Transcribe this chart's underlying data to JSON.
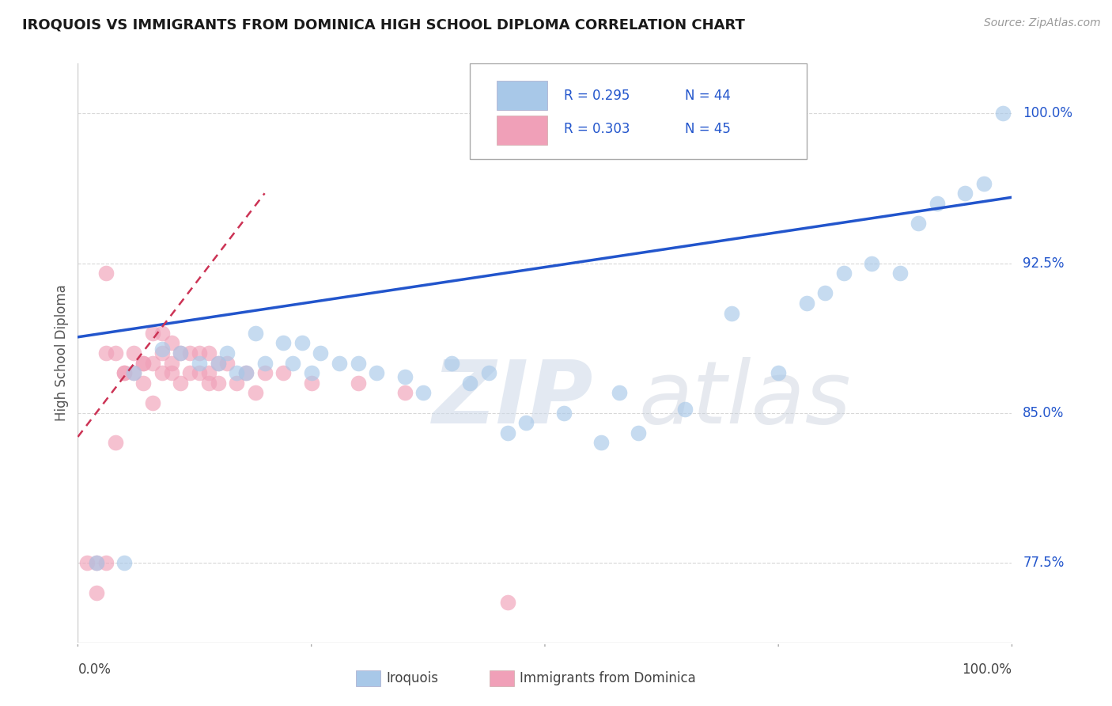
{
  "title": "IROQUOIS VS IMMIGRANTS FROM DOMINICA HIGH SCHOOL DIPLOMA CORRELATION CHART",
  "source": "Source: ZipAtlas.com",
  "ylabel": "High School Diploma",
  "xlim": [
    0,
    1.0
  ],
  "ylim": [
    0.735,
    1.025
  ],
  "ytick_positions": [
    0.775,
    0.85,
    0.925,
    1.0
  ],
  "ytick_labels": [
    "77.5%",
    "85.0%",
    "92.5%",
    "100.0%"
  ],
  "background_color": "#ffffff",
  "grid_color": "#c8c8c8",
  "blue_color": "#a8c8e8",
  "pink_color": "#f0a0b8",
  "blue_line_color": "#2255cc",
  "pink_line_color": "#cc3355",
  "legend_r_blue": "R = 0.295",
  "legend_n_blue": "N = 44",
  "legend_r_pink": "R = 0.303",
  "legend_n_pink": "N = 45",
  "legend_label_blue": "Iroquois",
  "legend_label_pink": "Immigrants from Dominica",
  "blue_scatter_x": [
    0.02,
    0.05,
    0.06,
    0.09,
    0.11,
    0.13,
    0.15,
    0.16,
    0.17,
    0.18,
    0.19,
    0.2,
    0.22,
    0.23,
    0.24,
    0.25,
    0.26,
    0.28,
    0.3,
    0.32,
    0.35,
    0.37,
    0.4,
    0.42,
    0.44,
    0.46,
    0.48,
    0.52,
    0.56,
    0.58,
    0.6,
    0.65,
    0.7,
    0.75,
    0.78,
    0.8,
    0.82,
    0.85,
    0.88,
    0.9,
    0.92,
    0.95,
    0.97,
    0.99
  ],
  "blue_scatter_y": [
    0.775,
    0.775,
    0.87,
    0.882,
    0.88,
    0.875,
    0.875,
    0.88,
    0.87,
    0.87,
    0.89,
    0.875,
    0.885,
    0.875,
    0.885,
    0.87,
    0.88,
    0.875,
    0.875,
    0.87,
    0.868,
    0.86,
    0.875,
    0.865,
    0.87,
    0.84,
    0.845,
    0.85,
    0.835,
    0.86,
    0.84,
    0.852,
    0.9,
    0.87,
    0.905,
    0.91,
    0.92,
    0.925,
    0.92,
    0.945,
    0.955,
    0.96,
    0.965,
    1.0
  ],
  "pink_scatter_x": [
    0.01,
    0.02,
    0.02,
    0.03,
    0.03,
    0.04,
    0.04,
    0.05,
    0.05,
    0.06,
    0.06,
    0.07,
    0.07,
    0.07,
    0.08,
    0.08,
    0.08,
    0.09,
    0.09,
    0.09,
    0.1,
    0.1,
    0.1,
    0.11,
    0.11,
    0.12,
    0.12,
    0.13,
    0.13,
    0.14,
    0.14,
    0.14,
    0.15,
    0.15,
    0.16,
    0.17,
    0.18,
    0.19,
    0.2,
    0.22,
    0.25,
    0.3,
    0.35,
    0.46,
    0.03
  ],
  "pink_scatter_y": [
    0.775,
    0.76,
    0.775,
    0.88,
    0.775,
    0.88,
    0.835,
    0.87,
    0.87,
    0.88,
    0.87,
    0.875,
    0.875,
    0.865,
    0.89,
    0.875,
    0.855,
    0.89,
    0.88,
    0.87,
    0.885,
    0.875,
    0.87,
    0.88,
    0.865,
    0.88,
    0.87,
    0.88,
    0.87,
    0.88,
    0.87,
    0.865,
    0.875,
    0.865,
    0.875,
    0.865,
    0.87,
    0.86,
    0.87,
    0.87,
    0.865,
    0.865,
    0.86,
    0.755,
    0.92
  ],
  "blue_line_x0": 0.0,
  "blue_line_y0": 0.888,
  "blue_line_x1": 1.0,
  "blue_line_y1": 0.958,
  "pink_line_x0": 0.0,
  "pink_line_y0": 0.838,
  "pink_line_x1": 0.2,
  "pink_line_y1": 0.96
}
